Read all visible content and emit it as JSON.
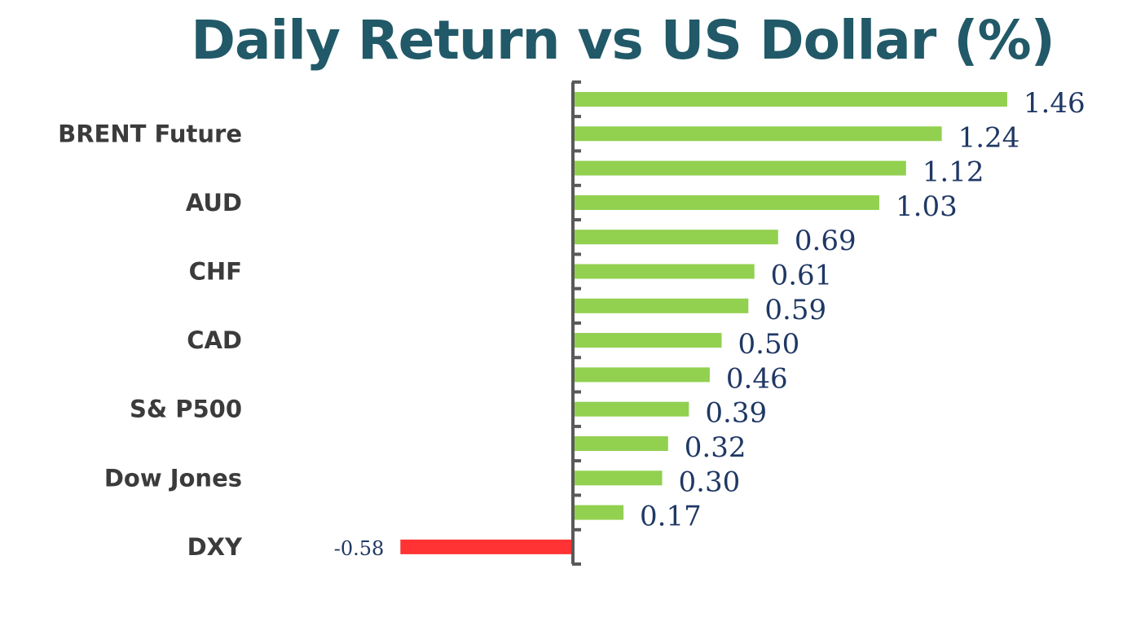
{
  "chart_data": {
    "type": "bar",
    "orientation": "horizontal",
    "title": "Daily Return vs US Dollar (%)",
    "categories": [
      "",
      "BRENT Future",
      "",
      "AUD",
      "",
      "CHF",
      "",
      "CAD",
      "",
      "S& P500",
      "",
      "Dow Jones",
      "",
      "DXY"
    ],
    "values": [
      1.46,
      1.24,
      1.12,
      1.03,
      0.69,
      0.61,
      0.59,
      0.5,
      0.46,
      0.39,
      0.32,
      0.3,
      0.17,
      -0.58
    ],
    "value_labels": [
      "1.46",
      "1.24",
      "1.12",
      "1.03",
      "0.69",
      "0.61",
      "0.59",
      "0.50",
      "0.46",
      "0.39",
      "0.32",
      "0.30",
      "0.17",
      "-0.58"
    ],
    "xlim": [
      -0.58,
      1.46
    ],
    "grid": false,
    "legend": "none",
    "colors": {
      "positive": "#92d050",
      "negative": "#ff3333",
      "title": "#215968",
      "value_label": "#1f3864",
      "category_label": "#3b3b3b",
      "axis": "#595959"
    }
  }
}
